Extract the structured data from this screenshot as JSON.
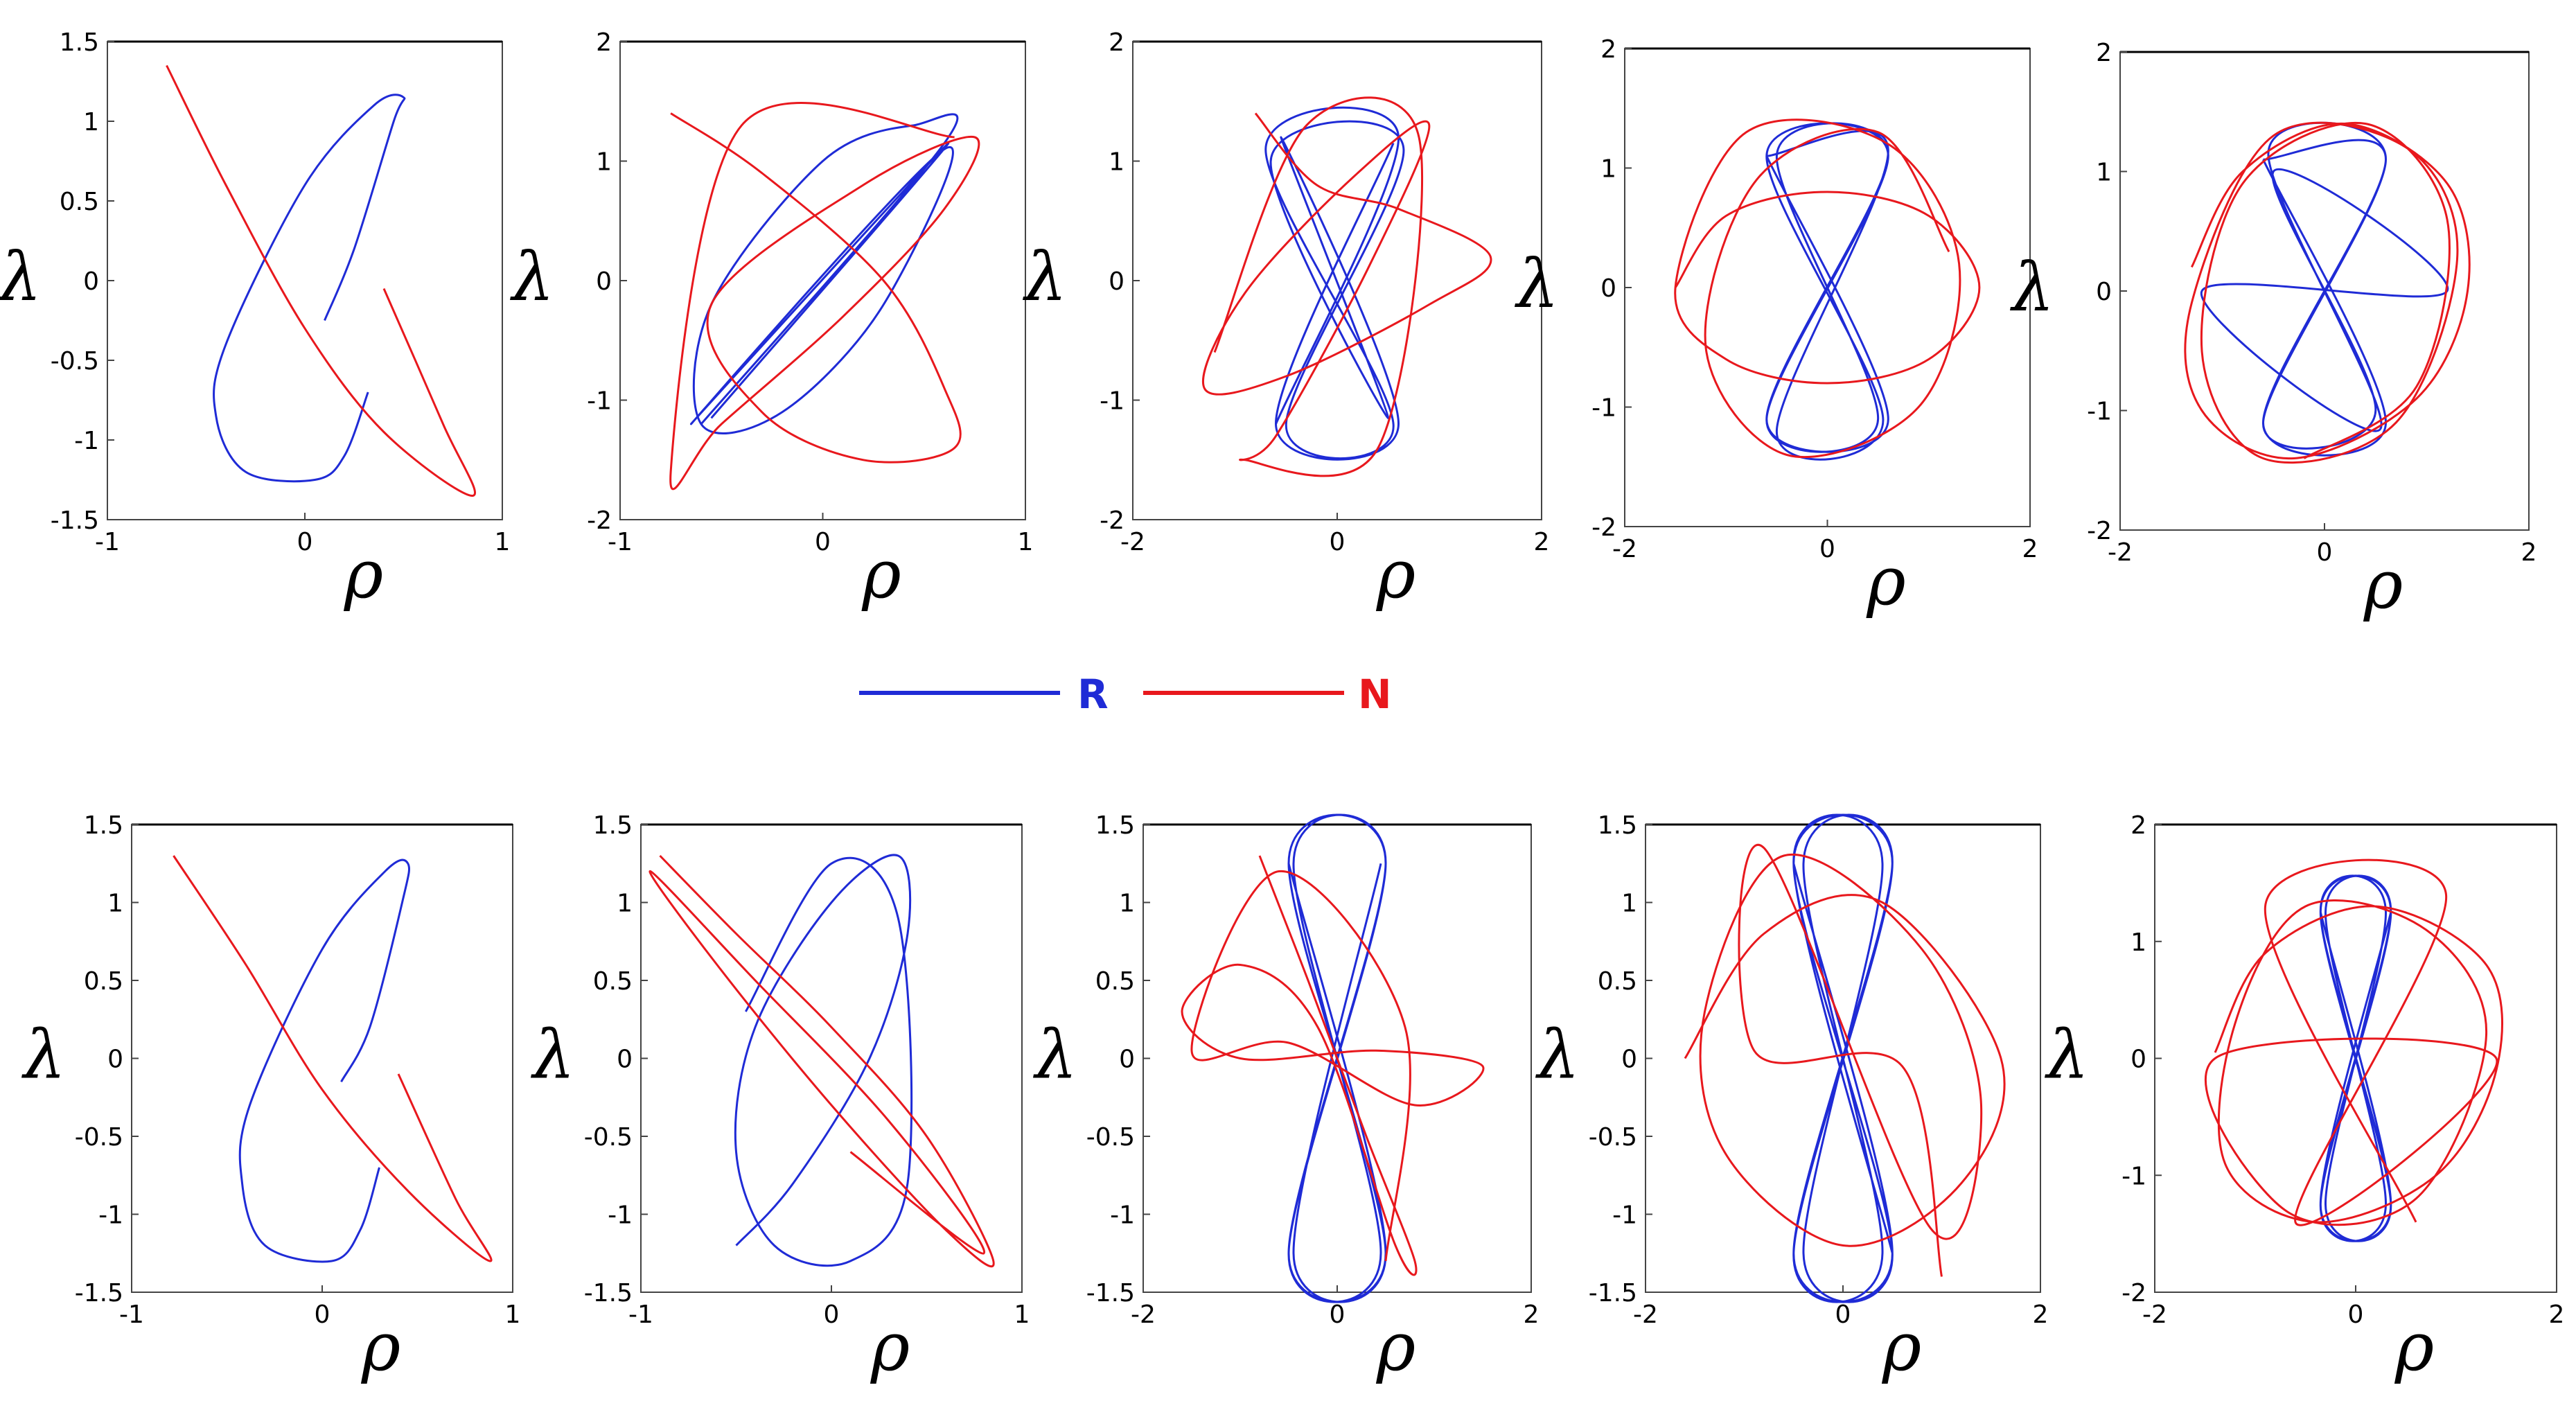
{
  "legend": [
    {
      "label": "R",
      "color": "#1f2bd6"
    },
    {
      "label": "N",
      "color": "#e8181d"
    }
  ],
  "chart_data": [
    {
      "type": "line",
      "panel": "top-1",
      "xlabel": "ρ",
      "ylabel": "λ",
      "xlim": [
        -1,
        1
      ],
      "ylim": [
        -1.5,
        1.5
      ],
      "xticks": [
        "-1",
        "0",
        "1"
      ],
      "yticks": [
        "1.5",
        "1",
        "0.5",
        "0",
        "-0.5",
        "-1",
        "-1.5"
      ],
      "series": [
        {
          "color": "#1f2bd6",
          "x": [
            0.1,
            0.25,
            0.45,
            0.5,
            0.35,
            0.0,
            -0.4,
            -0.45,
            -0.3,
            0.05,
            0.2,
            0.32
          ],
          "y": [
            -0.25,
            0.2,
            1.0,
            1.15,
            1.1,
            0.6,
            -0.4,
            -0.85,
            -1.2,
            -1.25,
            -1.1,
            -0.7
          ]
        },
        {
          "color": "#e8181d",
          "x": [
            -0.7,
            -0.4,
            0.0,
            0.4,
            0.85,
            0.7,
            0.4
          ],
          "y": [
            1.35,
            0.6,
            -0.3,
            -0.95,
            -1.35,
            -0.9,
            -0.05
          ]
        }
      ]
    },
    {
      "type": "line",
      "panel": "top-2",
      "xlabel": "ρ",
      "ylabel": "λ",
      "xlim": [
        -1,
        1
      ],
      "ylim": [
        -2,
        2
      ],
      "xticks": [
        "-1",
        "0",
        "1"
      ],
      "yticks": [
        "2",
        "1",
        "0",
        "-1",
        "-2"
      ],
      "series": [
        {
          "color": "#1f2bd6",
          "x": [
            -0.6,
            0.6,
            0.45,
            0.0,
            -0.55,
            -0.6,
            -0.2,
            0.3,
            0.6,
            -0.65,
            0.62,
            -0.55
          ],
          "y": [
            -1.2,
            1.15,
            1.3,
            1.0,
            -0.2,
            -1.2,
            -1.1,
            -0.2,
            1.1,
            -1.2,
            1.15,
            -1.15
          ]
        },
        {
          "color": "#e8181d",
          "x": [
            -0.75,
            -0.3,
            0.3,
            0.6,
            0.65,
            0.2,
            -0.3,
            -0.55,
            0.2,
            0.75,
            0.6,
            0.1,
            -0.5,
            -0.75,
            -0.4,
            0.65
          ],
          "y": [
            1.4,
            0.9,
            0.0,
            -0.9,
            -1.4,
            -1.5,
            -1.1,
            -0.2,
            0.8,
            1.2,
            0.6,
            -0.3,
            -1.2,
            -1.6,
            1.3,
            1.2
          ]
        }
      ]
    },
    {
      "type": "line",
      "panel": "top-3",
      "xlabel": "ρ",
      "ylabel": "λ",
      "xlim": [
        -2,
        2
      ],
      "ylim": [
        -2,
        2
      ],
      "xticks": [
        "-2",
        "0",
        "2"
      ],
      "yticks": [
        "2",
        "1",
        "0",
        "-1",
        "-2"
      ],
      "series": [
        {
          "color": "#1f2bd6",
          "x": [
            -0.6,
            0.6,
            -0.7,
            0.55,
            -0.5,
            0.65,
            -0.65,
            0.5,
            -0.55,
            0.6,
            -0.6,
            0.55
          ],
          "y": [
            -1.2,
            1.2,
            1.1,
            -1.2,
            -1.2,
            1.1,
            1.0,
            -1.15,
            1.2,
            -1.2,
            -1.2,
            1.15
          ]
        },
        {
          "color": "#e8181d",
          "x": [
            -0.8,
            -0.2,
            0.6,
            1.5,
            0.9,
            -0.5,
            -1.3,
            -0.9,
            0.2,
            0.9,
            0.3,
            -0.6,
            -0.9,
            0.4,
            0.8,
            -0.3,
            -1.2
          ],
          "y": [
            1.4,
            0.8,
            0.6,
            0.2,
            -0.2,
            -0.8,
            -0.9,
            -0.1,
            0.9,
            1.3,
            0.1,
            -1.3,
            -1.5,
            -1.4,
            1.2,
            1.3,
            -0.6
          ]
        }
      ]
    },
    {
      "type": "line",
      "panel": "top-4",
      "xlabel": "ρ",
      "ylabel": "λ",
      "xlim": [
        -2,
        2
      ],
      "ylim": [
        -2,
        2
      ],
      "xticks": [
        "-2",
        "0",
        "2"
      ],
      "yticks": [
        "2",
        "1",
        "0",
        "-1",
        "-2"
      ],
      "series": [
        {
          "color": "#1f2bd6",
          "x": [
            -0.6,
            0.6,
            -0.6,
            0.6,
            -0.5,
            0.5,
            -0.6,
            0.6,
            -0.6,
            0.55,
            -0.5,
            0.6,
            -0.6
          ],
          "y": [
            1.1,
            -1.1,
            -1.1,
            1.1,
            1.1,
            -1.1,
            -1.1,
            1.1,
            1.1,
            -1.1,
            -1.2,
            1.15,
            1.1
          ]
        },
        {
          "color": "#e8181d",
          "x": [
            -1.5,
            -1.0,
            0.0,
            1.0,
            1.5,
            1.0,
            0.0,
            -1.0,
            -1.5,
            -0.8,
            0.6,
            1.3,
            0.9,
            -0.4,
            -1.2,
            -0.7,
            0.5,
            1.2
          ],
          "y": [
            0.0,
            0.6,
            0.8,
            0.6,
            0.0,
            -0.6,
            -0.8,
            -0.6,
            0.0,
            1.3,
            1.2,
            0.2,
            -1.0,
            -1.4,
            -0.5,
            0.9,
            1.3,
            0.3
          ]
        }
      ]
    },
    {
      "type": "line",
      "panel": "top-5",
      "xlabel": "ρ",
      "ylabel": "λ",
      "xlim": [
        -2,
        2
      ],
      "ylim": [
        -2,
        2
      ],
      "xticks": [
        "-2",
        "0",
        "2"
      ],
      "yticks": [
        "2",
        "1",
        "0",
        "-1",
        "-2"
      ],
      "series": [
        {
          "color": "#1f2bd6",
          "x": [
            -0.6,
            0.6,
            -0.6,
            0.6,
            -0.55,
            0.55,
            -1.2,
            1.2,
            -0.5,
            0.5,
            -0.6,
            0.6,
            -0.6
          ],
          "y": [
            1.1,
            -1.1,
            -1.1,
            1.1,
            1.15,
            -1.15,
            0.0,
            0.0,
            1.0,
            -1.0,
            -1.1,
            1.1,
            1.1
          ]
        },
        {
          "color": "#e8181d",
          "x": [
            -1.3,
            -0.8,
            0.2,
            1.2,
            1.4,
            0.9,
            -0.3,
            -1.2,
            -1.3,
            -0.5,
            0.8,
            1.3,
            0.7,
            -0.6,
            -1.2,
            -0.8,
            0.4,
            1.2,
            0.9,
            -0.2
          ],
          "y": [
            0.2,
            1.0,
            1.4,
            0.9,
            0.0,
            -0.9,
            -1.4,
            -1.0,
            -0.1,
            1.3,
            1.2,
            0.3,
            -1.1,
            -1.4,
            -0.5,
            0.9,
            1.4,
            0.6,
            -0.8,
            -1.4
          ]
        }
      ]
    },
    {
      "type": "line",
      "panel": "bottom-1",
      "xlabel": "ρ",
      "ylabel": "λ",
      "xlim": [
        -1,
        1
      ],
      "ylim": [
        -1.5,
        1.5
      ],
      "xticks": [
        "-1",
        "0",
        "1"
      ],
      "yticks": [
        "1.5",
        "1",
        "0.5",
        "0",
        "-0.5",
        "-1",
        "-1.5"
      ],
      "series": [
        {
          "color": "#1f2bd6",
          "x": [
            0.1,
            0.25,
            0.42,
            0.45,
            0.33,
            0.0,
            -0.38,
            -0.42,
            -0.3,
            0.05,
            0.2,
            0.3
          ],
          "y": [
            -0.15,
            0.2,
            1.0,
            1.25,
            1.2,
            0.7,
            -0.3,
            -0.8,
            -1.2,
            -1.3,
            -1.1,
            -0.7
          ]
        },
        {
          "color": "#e8181d",
          "x": [
            -0.78,
            -0.4,
            0.0,
            0.45,
            0.88,
            0.7,
            0.4
          ],
          "y": [
            1.3,
            0.6,
            -0.2,
            -0.85,
            -1.3,
            -0.9,
            -0.1
          ]
        }
      ]
    },
    {
      "type": "line",
      "panel": "bottom-2",
      "xlabel": "ρ",
      "ylabel": "λ",
      "xlim": [
        -1,
        1
      ],
      "ylim": [
        -1.5,
        1.5
      ],
      "xticks": [
        "-1",
        "0",
        "1"
      ],
      "yticks": [
        "1.5",
        "1",
        "0.5",
        "0",
        "-0.5",
        "-1",
        "-1.5"
      ],
      "series": [
        {
          "color": "#1f2bd6",
          "x": [
            -0.5,
            -0.2,
            0.2,
            0.4,
            0.35,
            0.0,
            -0.4,
            -0.5,
            -0.3,
            0.1,
            0.4,
            0.35,
            0.0,
            -0.45
          ],
          "y": [
            -1.2,
            -0.8,
            0.0,
            0.8,
            1.3,
            1.0,
            0.2,
            -0.6,
            -1.2,
            -1.3,
            -0.8,
            0.9,
            1.25,
            0.3
          ]
        },
        {
          "color": "#e8181d",
          "x": [
            -0.9,
            -0.5,
            0.0,
            0.5,
            0.85,
            0.6,
            0.0,
            -0.6,
            -0.95,
            -0.4,
            0.3,
            0.8,
            0.1
          ],
          "y": [
            1.3,
            0.8,
            0.2,
            -0.5,
            -1.3,
            -1.1,
            -0.3,
            0.6,
            1.2,
            0.5,
            -0.4,
            -1.25,
            -0.6
          ]
        }
      ]
    },
    {
      "type": "line",
      "panel": "bottom-3",
      "xlabel": "ρ",
      "ylabel": "λ",
      "xlim": [
        -2,
        2
      ],
      "ylim": [
        -1.5,
        1.5
      ],
      "xticks": [
        "-2",
        "0",
        "2"
      ],
      "yticks": [
        "1.5",
        "1",
        "0.5",
        "0",
        "-0.5",
        "-1",
        "-1.5"
      ],
      "series": [
        {
          "color": "#1f2bd6",
          "x": [
            -0.5,
            0.5,
            -0.5,
            0.5,
            -0.45,
            0.45,
            -0.5,
            0.5,
            -0.5,
            0.5,
            -0.45,
            0.45
          ],
          "y": [
            1.25,
            -1.25,
            -1.25,
            1.25,
            1.25,
            -1.25,
            -1.25,
            1.25,
            1.25,
            -1.25,
            -1.25,
            1.25
          ]
        },
        {
          "color": "#e8181d",
          "x": [
            -0.8,
            -0.3,
            0.3,
            0.8,
            0.6,
            -0.2,
            -1.0,
            -1.6,
            -1.0,
            0.4,
            1.5,
            0.8,
            -0.5,
            -1.5,
            -0.6,
            0.7,
            0.5
          ],
          "y": [
            1.3,
            0.5,
            -0.5,
            -1.3,
            -1.2,
            0.2,
            0.6,
            0.3,
            0.0,
            0.05,
            -0.05,
            -0.3,
            0.1,
            0.05,
            1.2,
            0.2,
            -1.3
          ]
        }
      ]
    },
    {
      "type": "line",
      "panel": "bottom-4",
      "xlabel": "ρ",
      "ylabel": "λ",
      "xlim": [
        -2,
        2
      ],
      "ylim": [
        -1.5,
        1.5
      ],
      "xticks": [
        "-2",
        "0",
        "2"
      ],
      "yticks": [
        "1.5",
        "1",
        "0.5",
        "0",
        "-0.5",
        "-1",
        "-1.5"
      ],
      "series": [
        {
          "color": "#1f2bd6",
          "x": [
            -0.5,
            0.5,
            -0.5,
            0.5,
            -0.4,
            0.4,
            -0.5,
            0.5,
            -0.5,
            0.5,
            -0.4,
            0.4,
            -0.5,
            0.5
          ],
          "y": [
            1.25,
            -1.25,
            -1.25,
            1.25,
            1.25,
            -1.25,
            -1.25,
            1.25,
            1.25,
            -1.25,
            -1.25,
            1.25,
            1.25,
            -1.25
          ]
        },
        {
          "color": "#e8181d",
          "x": [
            -1.6,
            -0.8,
            0.4,
            1.6,
            1.2,
            0.0,
            -1.2,
            -1.4,
            -0.6,
            0.8,
            1.4,
            0.9,
            -0.8,
            -0.9,
            0.6,
            1.0
          ],
          "y": [
            0.0,
            0.8,
            1.0,
            0.0,
            -0.8,
            -1.2,
            -0.6,
            0.3,
            1.3,
            0.7,
            -0.3,
            -1.1,
            1.35,
            0.05,
            -0.05,
            -1.4
          ]
        }
      ]
    },
    {
      "type": "line",
      "panel": "bottom-5",
      "xlabel": "ρ",
      "ylabel": "λ",
      "xlim": [
        -2,
        2
      ],
      "ylim": [
        -2,
        2
      ],
      "xticks": [
        "-2",
        "0",
        "2"
      ],
      "yticks": [
        "2",
        "1",
        "0",
        "-1",
        "-2"
      ],
      "series": [
        {
          "color": "#1f2bd6",
          "x": [
            -0.35,
            0.35,
            -0.35,
            0.35,
            -0.3,
            0.3,
            -0.35,
            0.35,
            -0.35,
            0.35,
            -0.3,
            0.3,
            -0.35,
            0.35,
            -0.35,
            0.35
          ],
          "y": [
            1.25,
            -1.25,
            -1.25,
            1.25,
            1.25,
            -1.25,
            -1.25,
            1.25,
            1.25,
            -1.25,
            -1.25,
            1.25,
            1.25,
            -1.25,
            -1.25,
            1.25
          ]
        },
        {
          "color": "#e8181d",
          "x": [
            -1.4,
            -0.9,
            0.2,
            1.3,
            1.4,
            0.8,
            -0.4,
            -1.3,
            -1.2,
            -0.5,
            0.7,
            1.3,
            0.6,
            -0.7,
            -1.4,
            1.4,
            -0.6,
            0.9,
            -0.9,
            0.6
          ],
          "y": [
            0.05,
            0.9,
            1.3,
            0.8,
            -0.1,
            -1.0,
            -1.4,
            -0.9,
            0.3,
            1.3,
            1.1,
            0.2,
            -1.2,
            -1.3,
            0.0,
            0.0,
            -1.4,
            1.4,
            1.3,
            -1.4
          ]
        }
      ]
    }
  ]
}
